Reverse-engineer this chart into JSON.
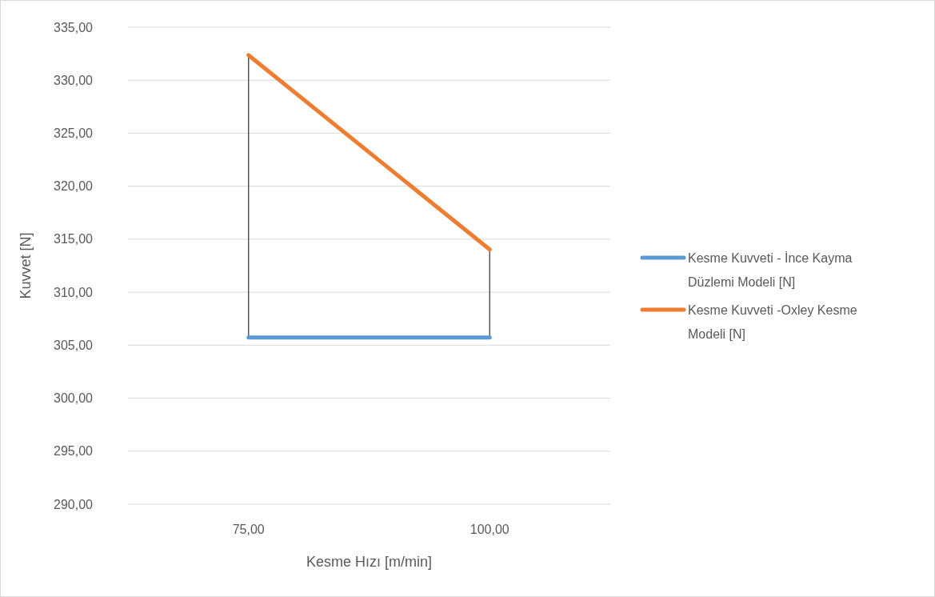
{
  "chart_data": {
    "type": "line",
    "xlabel": "Kesme Hızı [m/min]",
    "ylabel": "Kuvvet [N]",
    "categories": [
      "75,00",
      "100,00"
    ],
    "series": [
      {
        "name": "Kesme Kuvveti - İnce Kayma Düzlemi Modeli [N]",
        "color": "#5b9bd5",
        "values": [
          305.73,
          305.73
        ]
      },
      {
        "name": "Kesme Kuvveti -Oxley Kesme Modeli [N]",
        "color": "#ed7d31",
        "values": [
          332.36,
          314.03
        ]
      }
    ],
    "ylim": [
      290,
      335
    ],
    "yticks": [
      {
        "value": 290,
        "label": "290,00"
      },
      {
        "value": 295,
        "label": "295,00"
      },
      {
        "value": 300,
        "label": "300,00"
      },
      {
        "value": 305,
        "label": "305,00"
      },
      {
        "value": 310,
        "label": "310,00"
      },
      {
        "value": 315,
        "label": "315,00"
      },
      {
        "value": 320,
        "label": "320,00"
      },
      {
        "value": 325,
        "label": "325,00"
      },
      {
        "value": 330,
        "label": "330,00"
      },
      {
        "value": 335,
        "label": "335,00"
      }
    ],
    "grid": "y",
    "legend": "right",
    "marker": "none",
    "line_style": "solid"
  }
}
